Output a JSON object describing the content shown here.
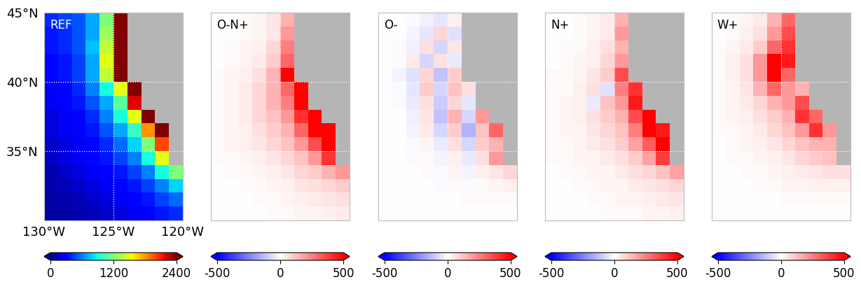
{
  "chart_data": [
    {
      "type": "heatmap",
      "title": "REF",
      "color": "jet",
      "grid": true,
      "tick_labels": true,
      "xlim": [
        -130,
        -120
      ],
      "ylim": [
        30,
        45
      ],
      "xticks": [
        {
          "value": -130,
          "label": "130°W"
        },
        {
          "value": -125,
          "label": "125°W"
        },
        {
          "value": -120,
          "label": "120°W"
        }
      ],
      "yticks": [
        {
          "value": 35,
          "label": "35°N"
        },
        {
          "value": 40,
          "label": "40°N"
        },
        {
          "value": 45,
          "label": "45°N"
        }
      ],
      "lon_edges": [
        -130,
        -129,
        -128,
        -127,
        -126,
        -125,
        -124,
        -123,
        -122,
        -121,
        -120
      ],
      "lat_edges": [
        30,
        31,
        32,
        33,
        34,
        35,
        36,
        37,
        38,
        39,
        40,
        41,
        42,
        43,
        44,
        45
      ],
      "colorbar_range": [
        0,
        2400
      ],
      "colorbar_ticks": [
        0,
        1200,
        2400
      ],
      "values": [
        [
          80,
          80,
          100,
          120,
          150,
          200,
          250,
          300,
          350,
          400
        ],
        [
          80,
          100,
          120,
          150,
          200,
          250,
          300,
          350,
          450,
          550
        ],
        [
          100,
          120,
          150,
          200,
          250,
          300,
          350,
          450,
          600,
          800
        ],
        [
          100,
          150,
          200,
          250,
          300,
          350,
          450,
          600,
          900,
          1200
        ],
        [
          150,
          200,
          250,
          300,
          350,
          450,
          600,
          900,
          1500,
          null
        ],
        [
          150,
          200,
          250,
          300,
          400,
          550,
          800,
          1200,
          2000,
          null
        ],
        [
          200,
          250,
          300,
          350,
          500,
          700,
          1000,
          1800,
          2400,
          null
        ],
        [
          200,
          250,
          300,
          400,
          600,
          900,
          1500,
          2400,
          null,
          null
        ],
        [
          250,
          300,
          350,
          500,
          700,
          1100,
          2200,
          null,
          null,
          null
        ],
        [
          250,
          300,
          400,
          600,
          900,
          1500,
          2500,
          null,
          null,
          null
        ],
        [
          300,
          350,
          450,
          700,
          1400,
          2400,
          null,
          null,
          null,
          null
        ],
        [
          300,
          350,
          450,
          700,
          1500,
          2500,
          null,
          null,
          null,
          null
        ],
        [
          350,
          400,
          500,
          750,
          1400,
          2500,
          null,
          null,
          null,
          null
        ],
        [
          350,
          400,
          500,
          700,
          1300,
          2500,
          null,
          null,
          null,
          null
        ],
        [
          400,
          450,
          500,
          700,
          1200,
          2400,
          null,
          null,
          null,
          null
        ]
      ]
    },
    {
      "type": "heatmap",
      "title": "O-N+",
      "color": "bwr",
      "grid": true,
      "tick_labels": false,
      "xlim": [
        -130,
        -120
      ],
      "ylim": [
        30,
        45
      ],
      "xticks": [
        -125
      ],
      "yticks": [
        35,
        40
      ],
      "lon_edges": [
        -130,
        -129,
        -128,
        -127,
        -126,
        -125,
        -124,
        -123,
        -122,
        -121,
        -120
      ],
      "lat_edges": [
        30,
        31,
        32,
        33,
        34,
        35,
        36,
        37,
        38,
        39,
        40,
        41,
        42,
        43,
        44,
        45
      ],
      "colorbar_range": [
        -500,
        500
      ],
      "colorbar_ticks": [
        -500,
        0,
        500
      ],
      "values": [
        [
          0,
          0,
          0,
          0,
          10,
          10,
          20,
          20,
          30,
          40
        ],
        [
          0,
          0,
          0,
          10,
          10,
          20,
          30,
          40,
          50,
          60
        ],
        [
          0,
          0,
          10,
          10,
          20,
          30,
          50,
          60,
          80,
          100
        ],
        [
          0,
          10,
          10,
          20,
          30,
          50,
          80,
          100,
          150,
          200
        ],
        [
          10,
          10,
          20,
          30,
          50,
          80,
          120,
          200,
          400,
          null
        ],
        [
          10,
          20,
          30,
          50,
          80,
          120,
          200,
          350,
          550,
          null
        ],
        [
          10,
          20,
          30,
          60,
          100,
          150,
          300,
          550,
          500,
          null
        ],
        [
          10,
          20,
          40,
          80,
          120,
          200,
          400,
          550,
          null,
          null
        ],
        [
          10,
          20,
          40,
          80,
          150,
          250,
          500,
          null,
          null,
          null
        ],
        [
          10,
          20,
          40,
          80,
          150,
          300,
          550,
          null,
          null,
          null
        ],
        [
          10,
          20,
          30,
          60,
          150,
          500,
          null,
          null,
          null,
          null
        ],
        [
          0,
          10,
          20,
          40,
          100,
          300,
          null,
          null,
          null,
          null
        ],
        [
          0,
          10,
          20,
          30,
          80,
          250,
          null,
          null,
          null,
          null
        ],
        [
          0,
          0,
          10,
          20,
          50,
          200,
          null,
          null,
          null,
          null
        ],
        [
          0,
          0,
          10,
          20,
          50,
          150,
          null,
          null,
          null,
          null
        ]
      ]
    },
    {
      "type": "heatmap",
      "title": "O-",
      "color": "bwr",
      "grid": true,
      "tick_labels": false,
      "xlim": [
        -130,
        -120
      ],
      "ylim": [
        30,
        45
      ],
      "xticks": [
        -125
      ],
      "yticks": [
        35,
        40
      ],
      "lon_edges": [
        -130,
        -129,
        -128,
        -127,
        -126,
        -125,
        -124,
        -123,
        -122,
        -121,
        -120
      ],
      "lat_edges": [
        30,
        31,
        32,
        33,
        34,
        35,
        36,
        37,
        38,
        39,
        40,
        41,
        42,
        43,
        44,
        45
      ],
      "colorbar_range": [
        -500,
        500
      ],
      "colorbar_ticks": [
        -500,
        0,
        500
      ],
      "values": [
        [
          0,
          0,
          0,
          0,
          0,
          0,
          0,
          0,
          0,
          0
        ],
        [
          0,
          0,
          0,
          0,
          0,
          0,
          10,
          10,
          10,
          10
        ],
        [
          0,
          0,
          0,
          0,
          -10,
          10,
          -10,
          10,
          20,
          30
        ],
        [
          0,
          0,
          0,
          10,
          -10,
          20,
          -20,
          30,
          50,
          80
        ],
        [
          0,
          0,
          -10,
          10,
          -20,
          30,
          -40,
          60,
          200,
          null
        ],
        [
          0,
          0,
          -10,
          20,
          -40,
          60,
          -80,
          100,
          150,
          null
        ],
        [
          0,
          0,
          -20,
          40,
          -80,
          100,
          -150,
          120,
          300,
          null
        ],
        [
          0,
          0,
          -30,
          50,
          -120,
          150,
          -80,
          200,
          null,
          null
        ],
        [
          0,
          -10,
          -40,
          60,
          -100,
          80,
          -50,
          null,
          null,
          null
        ],
        [
          0,
          -10,
          -50,
          100,
          -80,
          120,
          60,
          null,
          null,
          null
        ],
        [
          0,
          -20,
          -60,
          80,
          -120,
          100,
          null,
          null,
          null,
          null
        ],
        [
          0,
          -10,
          40,
          -80,
          60,
          -40,
          null,
          null,
          null,
          null
        ],
        [
          0,
          -10,
          -30,
          60,
          -80,
          50,
          null,
          null,
          null,
          null
        ],
        [
          0,
          0,
          -20,
          -50,
          80,
          -60,
          null,
          null,
          null,
          null
        ],
        [
          0,
          0,
          -10,
          -30,
          -50,
          30,
          null,
          null,
          null,
          null
        ]
      ]
    },
    {
      "type": "heatmap",
      "title": "N+",
      "color": "bwr",
      "grid": true,
      "tick_labels": false,
      "xlim": [
        -130,
        -120
      ],
      "ylim": [
        30,
        45
      ],
      "xticks": [
        -125
      ],
      "yticks": [
        35,
        40
      ],
      "lon_edges": [
        -130,
        -129,
        -128,
        -127,
        -126,
        -125,
        -124,
        -123,
        -122,
        -121,
        -120
      ],
      "lat_edges": [
        30,
        31,
        32,
        33,
        34,
        35,
        36,
        37,
        38,
        39,
        40,
        41,
        42,
        43,
        44,
        45
      ],
      "colorbar_range": [
        -500,
        500
      ],
      "colorbar_ticks": [
        -500,
        0,
        500
      ],
      "values": [
        [
          0,
          0,
          0,
          0,
          10,
          10,
          10,
          20,
          20,
          30
        ],
        [
          0,
          0,
          0,
          10,
          10,
          20,
          20,
          30,
          40,
          50
        ],
        [
          0,
          0,
          10,
          10,
          20,
          20,
          40,
          50,
          60,
          80
        ],
        [
          0,
          10,
          10,
          20,
          20,
          40,
          60,
          80,
          120,
          180
        ],
        [
          10,
          10,
          20,
          20,
          40,
          60,
          100,
          180,
          380,
          null
        ],
        [
          10,
          10,
          20,
          40,
          60,
          100,
          180,
          320,
          520,
          null
        ],
        [
          10,
          20,
          20,
          50,
          80,
          120,
          250,
          500,
          450,
          null
        ],
        [
          10,
          20,
          30,
          60,
          100,
          150,
          350,
          500,
          null,
          null
        ],
        [
          10,
          20,
          30,
          -40,
          120,
          200,
          450,
          null,
          null,
          null
        ],
        [
          10,
          10,
          30,
          60,
          -60,
          250,
          400,
          null,
          null,
          null
        ],
        [
          10,
          10,
          20,
          50,
          100,
          350,
          null,
          null,
          null,
          null
        ],
        [
          0,
          10,
          20,
          30,
          80,
          200,
          null,
          null,
          null,
          null
        ],
        [
          0,
          10,
          10,
          30,
          60,
          150,
          null,
          null,
          null,
          null
        ],
        [
          0,
          0,
          10,
          20,
          40,
          200,
          null,
          null,
          null,
          null
        ],
        [
          0,
          0,
          10,
          20,
          40,
          150,
          null,
          null,
          null,
          null
        ]
      ]
    },
    {
      "type": "heatmap",
      "title": "W+",
      "color": "bwr",
      "grid": true,
      "tick_labels": false,
      "xlim": [
        -130,
        -120
      ],
      "ylim": [
        30,
        45
      ],
      "xticks": [
        -125
      ],
      "yticks": [
        35,
        40
      ],
      "lon_edges": [
        -130,
        -129,
        -128,
        -127,
        -126,
        -125,
        -124,
        -123,
        -122,
        -121,
        -120
      ],
      "lat_edges": [
        30,
        31,
        32,
        33,
        34,
        35,
        36,
        37,
        38,
        39,
        40,
        41,
        42,
        43,
        44,
        45
      ],
      "colorbar_range": [
        -500,
        500
      ],
      "colorbar_ticks": [
        -500,
        0,
        500
      ],
      "values": [
        [
          0,
          0,
          0,
          0,
          0,
          0,
          0,
          0,
          0,
          0
        ],
        [
          0,
          0,
          0,
          0,
          0,
          10,
          10,
          10,
          10,
          10
        ],
        [
          0,
          0,
          0,
          10,
          10,
          20,
          20,
          30,
          30,
          30
        ],
        [
          0,
          0,
          10,
          10,
          20,
          30,
          40,
          50,
          60,
          60
        ],
        [
          0,
          10,
          10,
          20,
          30,
          50,
          80,
          100,
          120,
          null
        ],
        [
          0,
          10,
          20,
          30,
          50,
          80,
          120,
          150,
          150,
          null
        ],
        [
          10,
          10,
          20,
          40,
          80,
          120,
          200,
          400,
          200,
          null
        ],
        [
          10,
          20,
          30,
          60,
          100,
          150,
          400,
          300,
          null,
          null
        ],
        [
          10,
          20,
          40,
          80,
          150,
          200,
          350,
          null,
          null,
          null
        ],
        [
          10,
          20,
          50,
          150,
          300,
          200,
          150,
          null,
          null,
          null
        ],
        [
          10,
          30,
          60,
          200,
          550,
          300,
          null,
          null,
          null,
          null
        ],
        [
          10,
          30,
          60,
          200,
          550,
          450,
          null,
          null,
          null,
          null
        ],
        [
          10,
          20,
          40,
          100,
          300,
          400,
          null,
          null,
          null,
          null
        ],
        [
          0,
          10,
          30,
          60,
          200,
          350,
          null,
          null,
          null,
          null
        ],
        [
          0,
          10,
          20,
          40,
          150,
          300,
          null,
          null,
          null,
          null
        ]
      ]
    }
  ]
}
